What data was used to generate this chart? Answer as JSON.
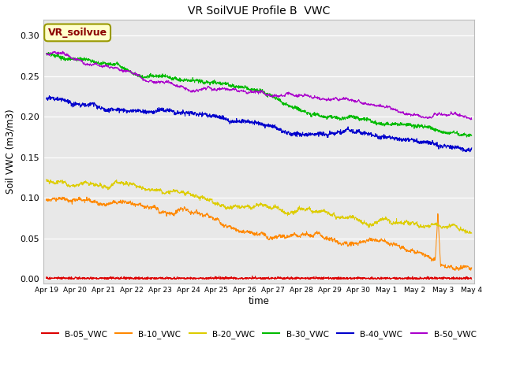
{
  "title": "VR SoilVUE Profile B  VWC",
  "ylabel": "Soil VWC (m3/m3)",
  "xlabel": "time",
  "ylim": [
    -0.005,
    0.32
  ],
  "plot_bg_color": "#e8e8e8",
  "vr_label": "VR_soilvue",
  "vr_label_color": "#8B0000",
  "vr_box_facecolor": "#ffffcc",
  "vr_box_edgecolor": "#999900",
  "tick_labels": [
    "Apr 19",
    "Apr 20",
    "Apr 21",
    "Apr 22",
    "Apr 23",
    "Apr 24",
    "Apr 25",
    "Apr 26",
    "Apr 27",
    "Apr 28",
    "Apr 29",
    "Apr 30",
    "May 1",
    "May 2",
    "May 3",
    "May 4"
  ],
  "yticks": [
    0.0,
    0.05,
    0.1,
    0.15,
    0.2,
    0.25,
    0.3
  ],
  "legend_items": [
    {
      "label": "B-05_VWC",
      "color": "#dd0000"
    },
    {
      "label": "B-10_VWC",
      "color": "#ff8800"
    },
    {
      "label": "B-20_VWC",
      "color": "#ddcc00"
    },
    {
      "label": "B-30_VWC",
      "color": "#00bb00"
    },
    {
      "label": "B-40_VWC",
      "color": "#0000cc"
    },
    {
      "label": "B-50_VWC",
      "color": "#aa00cc"
    }
  ]
}
